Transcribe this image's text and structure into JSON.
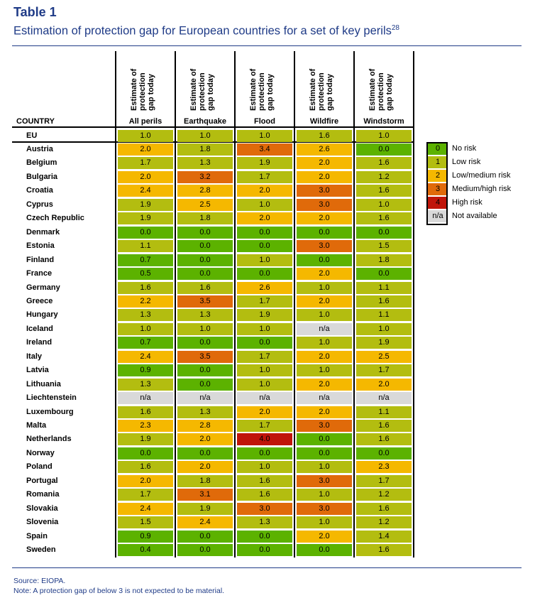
{
  "title": "Table 1",
  "subtitle": "Estimation of protection gap for European countries for a set of key perils",
  "footnote_ref": "28",
  "column_header_lines": [
    "Estimate of",
    "protection",
    "gap today"
  ],
  "country_header": "COUNTRY",
  "perils": [
    "All perils",
    "Earthquake",
    "Flood",
    "Wildfire",
    "Windstorm"
  ],
  "colors": {
    "0": "#5cb200",
    "1": "#b3bd10",
    "2": "#f5b800",
    "3": "#e06a0a",
    "4": "#c0150a",
    "na": "#d9d9d9",
    "border": "#000000",
    "title": "#1f3b87"
  },
  "eu_row": {
    "country": "EU",
    "values": [
      "1.0",
      "1.0",
      "1.0",
      "1.6",
      "1.0"
    ]
  },
  "rows": [
    {
      "country": "Austria",
      "values": [
        "2.0",
        "1.8",
        "3.4",
        "2.6",
        "0.0"
      ]
    },
    {
      "country": "Belgium",
      "values": [
        "1.7",
        "1.3",
        "1.9",
        "2.0",
        "1.6"
      ]
    },
    {
      "country": "Bulgaria",
      "values": [
        "2.0",
        "3.2",
        "1.7",
        "2.0",
        "1.2"
      ]
    },
    {
      "country": "Croatia",
      "values": [
        "2.4",
        "2.8",
        "2.0",
        "3.0",
        "1.6"
      ]
    },
    {
      "country": "Cyprus",
      "values": [
        "1.9",
        "2.5",
        "1.0",
        "3.0",
        "1.0"
      ]
    },
    {
      "country": "Czech Republic",
      "values": [
        "1.9",
        "1.8",
        "2.0",
        "2.0",
        "1.6"
      ]
    },
    {
      "country": "Denmark",
      "values": [
        "0.0",
        "0.0",
        "0.0",
        "0.0",
        "0.0"
      ]
    },
    {
      "country": "Estonia",
      "values": [
        "1.1",
        "0.0",
        "0.0",
        "3.0",
        "1.5"
      ]
    },
    {
      "country": "Finland",
      "values": [
        "0.7",
        "0.0",
        "1.0",
        "0.0",
        "1.8"
      ]
    },
    {
      "country": "France",
      "values": [
        "0.5",
        "0.0",
        "0.0",
        "2.0",
        "0.0"
      ]
    },
    {
      "country": "Germany",
      "values": [
        "1.6",
        "1.6",
        "2.6",
        "1.0",
        "1.1"
      ]
    },
    {
      "country": "Greece",
      "values": [
        "2.2",
        "3.5",
        "1.7",
        "2.0",
        "1.6"
      ]
    },
    {
      "country": "Hungary",
      "values": [
        "1.3",
        "1.3",
        "1.9",
        "1.0",
        "1.1"
      ]
    },
    {
      "country": "Iceland",
      "values": [
        "1.0",
        "1.0",
        "1.0",
        "n/a",
        "1.0"
      ]
    },
    {
      "country": "Ireland",
      "values": [
        "0.7",
        "0.0",
        "0.0",
        "1.0",
        "1.9"
      ]
    },
    {
      "country": "Italy",
      "values": [
        "2.4",
        "3.5",
        "1.7",
        "2.0",
        "2.5"
      ]
    },
    {
      "country": "Latvia",
      "values": [
        "0.9",
        "0.0",
        "1.0",
        "1.0",
        "1.7"
      ]
    },
    {
      "country": "Lithuania",
      "values": [
        "1.3",
        "0.0",
        "1.0",
        "2.0",
        "2.0"
      ]
    },
    {
      "country": "Liechtenstein",
      "values": [
        "n/a",
        "n/a",
        "n/a",
        "n/a",
        "n/a"
      ]
    },
    {
      "country": "Luxembourg",
      "values": [
        "1.6",
        "1.3",
        "2.0",
        "2.0",
        "1.1"
      ]
    },
    {
      "country": "Malta",
      "values": [
        "2.3",
        "2.8",
        "1.7",
        "3.0",
        "1.6"
      ]
    },
    {
      "country": "Netherlands",
      "values": [
        "1.9",
        "2.0",
        "4.0",
        "0.0",
        "1.6"
      ]
    },
    {
      "country": "Norway",
      "values": [
        "0.0",
        "0.0",
        "0.0",
        "0.0",
        "0.0"
      ]
    },
    {
      "country": "Poland",
      "values": [
        "1.6",
        "2.0",
        "1.0",
        "1.0",
        "2.3"
      ]
    },
    {
      "country": "Portugal",
      "values": [
        "2.0",
        "1.8",
        "1.6",
        "3.0",
        "1.7"
      ]
    },
    {
      "country": "Romania",
      "values": [
        "1.7",
        "3.1",
        "1.6",
        "1.0",
        "1.2"
      ]
    },
    {
      "country": "Slovakia",
      "values": [
        "2.4",
        "1.9",
        "3.0",
        "3.0",
        "1.6"
      ]
    },
    {
      "country": "Slovenia",
      "values": [
        "1.5",
        "2.4",
        "1.3",
        "1.0",
        "1.2"
      ]
    },
    {
      "country": "Spain",
      "values": [
        "0.9",
        "0.0",
        "0.0",
        "2.0",
        "1.4"
      ]
    },
    {
      "country": "Sweden",
      "values": [
        "0.4",
        "0.0",
        "0.0",
        "0.0",
        "1.6"
      ]
    }
  ],
  "legend": [
    {
      "code": "0",
      "label": "No risk",
      "color_key": "0"
    },
    {
      "code": "1",
      "label": "Low risk",
      "color_key": "1"
    },
    {
      "code": "2",
      "label": "Low/medium risk",
      "color_key": "2"
    },
    {
      "code": "3",
      "label": "Medium/high risk",
      "color_key": "3"
    },
    {
      "code": "4",
      "label": "High risk",
      "color_key": "4"
    },
    {
      "code": "n/a",
      "label": "Not available",
      "color_key": "na"
    }
  ],
  "source": "Source: EIOPA.",
  "note": "Note: A protection gap of below 3 is not expected to be material."
}
